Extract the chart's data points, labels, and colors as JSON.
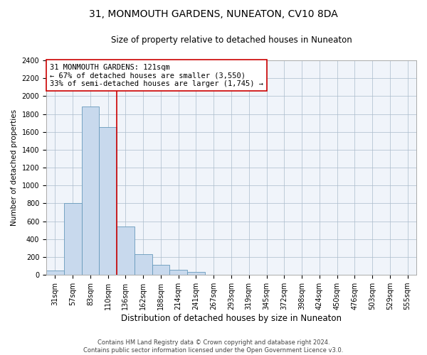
{
  "title": "31, MONMOUTH GARDENS, NUNEATON, CV10 8DA",
  "subtitle": "Size of property relative to detached houses in Nuneaton",
  "xlabel": "Distribution of detached houses by size in Nuneaton",
  "ylabel": "Number of detached properties",
  "footer_line1": "Contains HM Land Registry data © Crown copyright and database right 2024.",
  "footer_line2": "Contains public sector information licensed under the Open Government Licence v3.0.",
  "categories": [
    "31sqm",
    "57sqm",
    "83sqm",
    "110sqm",
    "136sqm",
    "162sqm",
    "188sqm",
    "214sqm",
    "241sqm",
    "267sqm",
    "293sqm",
    "319sqm",
    "345sqm",
    "372sqm",
    "398sqm",
    "424sqm",
    "450sqm",
    "476sqm",
    "503sqm",
    "529sqm",
    "555sqm"
  ],
  "values": [
    50,
    800,
    1880,
    1650,
    540,
    235,
    110,
    55,
    30,
    0,
    0,
    0,
    0,
    0,
    0,
    0,
    0,
    0,
    0,
    0,
    0
  ],
  "bar_color": "#c8d9ed",
  "bar_edge_color": "#6699bb",
  "vline_x_index": 3,
  "vline_color": "#cc0000",
  "annotation_line1": "31 MONMOUTH GARDENS: 121sqm",
  "annotation_line2": "← 67% of detached houses are smaller (3,550)",
  "annotation_line3": "33% of semi-detached houses are larger (1,745) →",
  "annotation_box_color": "#ffffff",
  "annotation_box_edge": "#cc0000",
  "ylim": [
    0,
    2400
  ],
  "yticks": [
    0,
    200,
    400,
    600,
    800,
    1000,
    1200,
    1400,
    1600,
    1800,
    2000,
    2200,
    2400
  ],
  "title_fontsize": 10,
  "subtitle_fontsize": 8.5,
  "xlabel_fontsize": 8.5,
  "ylabel_fontsize": 7.5,
  "tick_fontsize": 7,
  "footer_fontsize": 6,
  "annotation_fontsize": 7.5,
  "bg_color": "#f0f4fa"
}
